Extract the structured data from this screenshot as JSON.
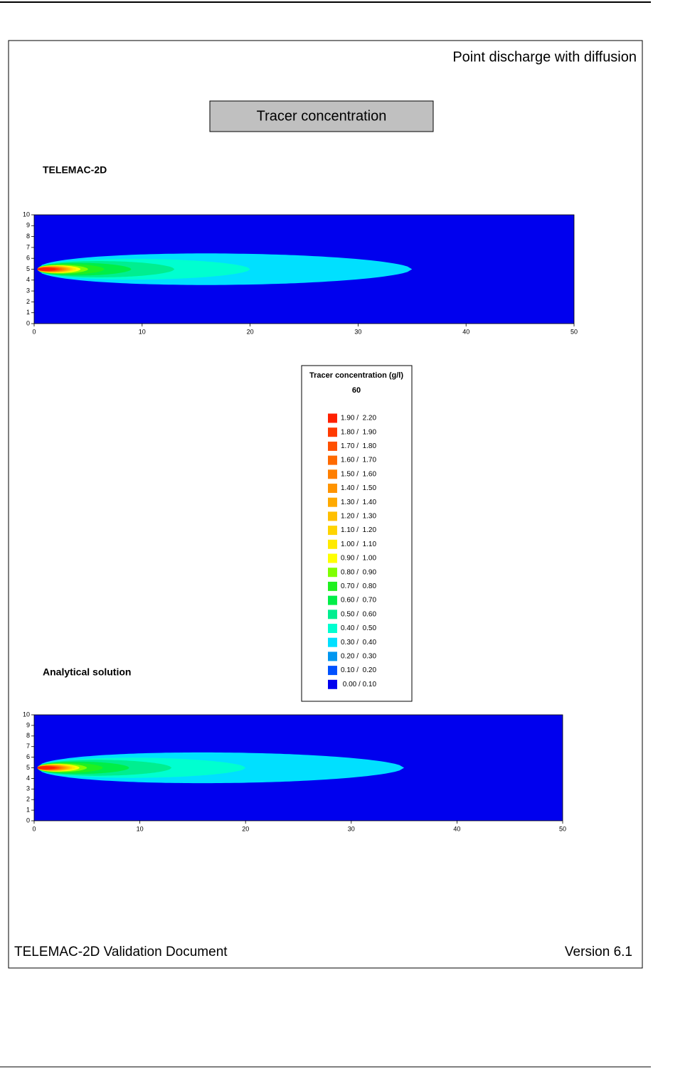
{
  "header": {
    "title": "Point discharge with diffusion"
  },
  "figure_title": "Tracer concentration",
  "plots": [
    {
      "label": "TELEMAC-2D",
      "xlim": [
        0,
        50
      ],
      "ylim": [
        0,
        10
      ],
      "xticks": [
        0,
        10,
        20,
        30,
        40,
        50
      ],
      "yticks": [
        0,
        1,
        2,
        3,
        4,
        5,
        6,
        7,
        8,
        9,
        10
      ]
    },
    {
      "label": "Analytical solution",
      "xlim": [
        0,
        50
      ],
      "ylim": [
        0,
        10
      ],
      "xticks": [
        0,
        10,
        20,
        30,
        40,
        50
      ],
      "yticks": [
        0,
        1,
        2,
        3,
        4,
        5,
        6,
        7,
        8,
        9,
        10
      ]
    }
  ],
  "legend": {
    "title": "Tracer concentration (g/l)",
    "time": "60",
    "entries": [
      {
        "label": "1.90 /  2.20",
        "color": "#ff2000"
      },
      {
        "label": "1.80 /  1.90",
        "color": "#ff3a00"
      },
      {
        "label": "1.70 /  1.80",
        "color": "#ff5000"
      },
      {
        "label": "1.60 /  1.70",
        "color": "#ff6a00"
      },
      {
        "label": "1.50 /  1.60",
        "color": "#ff7f00"
      },
      {
        "label": "1.40 /  1.50",
        "color": "#ff9400"
      },
      {
        "label": "1.30 /  1.40",
        "color": "#ffaa00"
      },
      {
        "label": "1.20 /  1.30",
        "color": "#ffbf00"
      },
      {
        "label": "1.10 /  1.20",
        "color": "#ffd400"
      },
      {
        "label": "1.00 /  1.10",
        "color": "#ffea00"
      },
      {
        "label": "0.90 /  1.00",
        "color": "#ffff00"
      },
      {
        "label": "0.80 /  0.90",
        "color": "#80ff00"
      },
      {
        "label": "0.70 /  0.80",
        "color": "#20f020"
      },
      {
        "label": "0.60 /  0.70",
        "color": "#00ee48"
      },
      {
        "label": "0.50 /  0.60",
        "color": "#00ee90"
      },
      {
        "label": "0.40 /  0.50",
        "color": "#00ffd0"
      },
      {
        "label": "0.30 /  0.40",
        "color": "#00e0ff"
      },
      {
        "label": "0.20 /  0.30",
        "color": "#0096f0"
      },
      {
        "label": "0.10 /  0.20",
        "color": "#0050ff"
      },
      {
        "label": " 0.00 / 0.10",
        "color": "#0000ee"
      }
    ]
  },
  "footer": {
    "left": "TELEMAC-2D Validation Document",
    "right": "Version 6.1"
  }
}
